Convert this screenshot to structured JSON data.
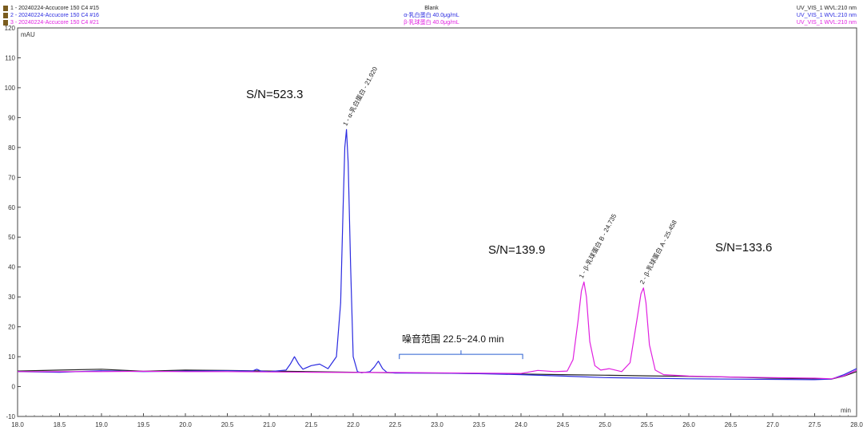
{
  "legend": [
    {
      "id": "1",
      "text": "1 - 20240224-Accucore 150 C4 #15",
      "center": "Blank",
      "right": "UV_VIS_1 WVL:210 nm",
      "color": "#222222"
    },
    {
      "id": "2",
      "text": "2 - 20240224-Accucore 150 C4 #16",
      "center": "α-乳白蛋白 40.0μg/mL",
      "right": "UV_VIS_1 WVL:210 nm",
      "color": "#2b2be0"
    },
    {
      "id": "3",
      "text": "3 - 20240224-Accucore 150 C4 #21",
      "center": "β-乳球蛋白 40.0μg/mL",
      "right": "UV_VIS_1 WVL:210 nm",
      "color": "#e020e0"
    }
  ],
  "chart_data": {
    "type": "line",
    "ylabel": "mAU",
    "xlabel": "min",
    "xlim": [
      18.0,
      28.0
    ],
    "ylim": [
      -10,
      120
    ],
    "xticks": [
      "18.0",
      "18.5",
      "19.0",
      "19.5",
      "20.0",
      "20.5",
      "21.0",
      "21.5",
      "22.0",
      "22.5",
      "23.0",
      "23.5",
      "24.0",
      "24.5",
      "25.0",
      "25.5",
      "26.0",
      "26.5",
      "27.0",
      "27.5",
      "28.0"
    ],
    "yticks": [
      "-10",
      "0",
      "10",
      "20",
      "30",
      "40",
      "50",
      "60",
      "70",
      "80",
      "90",
      "100",
      "110",
      "120"
    ],
    "series": [
      {
        "name": "1 - 20240224-Accucore 150 C4 #15",
        "color": "#222222",
        "x": [
          18.0,
          18.5,
          19.0,
          19.5,
          20.0,
          20.5,
          21.0,
          21.5,
          22.0,
          22.5,
          23.0,
          23.5,
          24.0,
          24.5,
          25.0,
          25.5,
          26.0,
          26.5,
          27.0,
          27.5,
          27.7,
          27.85,
          28.0
        ],
        "y": [
          5.2,
          5.5,
          5.8,
          5.1,
          5.5,
          5.4,
          5.2,
          5.0,
          4.8,
          4.6,
          4.5,
          4.4,
          4.2,
          4.0,
          3.8,
          3.6,
          3.4,
          3.2,
          2.8,
          2.6,
          2.5,
          3.5,
          5.0
        ]
      },
      {
        "name": "2 - 20240224-Accucore 150 C4 #16",
        "color": "#2b2be0",
        "x": [
          18.0,
          18.5,
          19.0,
          19.5,
          20.0,
          20.5,
          20.8,
          20.85,
          20.9,
          21.0,
          21.2,
          21.25,
          21.3,
          21.35,
          21.4,
          21.5,
          21.6,
          21.7,
          21.8,
          21.85,
          21.88,
          21.9,
          21.92,
          21.94,
          21.97,
          22.0,
          22.05,
          22.1,
          22.2,
          22.25,
          22.3,
          22.35,
          22.4,
          22.5,
          23.0,
          23.5,
          24.0,
          24.5,
          25.0,
          25.5,
          26.0,
          26.5,
          27.0,
          27.5,
          27.7,
          27.85,
          28.0
        ],
        "y": [
          5.0,
          4.8,
          5.3,
          5.0,
          5.2,
          5.3,
          5.2,
          5.8,
          5.2,
          5.0,
          5.5,
          7.5,
          10.0,
          7.5,
          5.8,
          7.0,
          7.5,
          6.0,
          10.0,
          28.0,
          60.0,
          80.0,
          86.0,
          75.0,
          40.0,
          10.0,
          5.0,
          4.6,
          5.0,
          6.5,
          8.5,
          6.0,
          4.8,
          4.5,
          4.5,
          4.3,
          4.0,
          3.5,
          3.0,
          2.8,
          2.6,
          2.5,
          2.4,
          2.3,
          2.5,
          4.0,
          6.0
        ]
      },
      {
        "name": "3 - 20240224-Accucore 150 C4 #21",
        "color": "#e020e0",
        "x": [
          18.0,
          18.5,
          19.0,
          19.5,
          20.0,
          20.5,
          21.0,
          21.5,
          22.0,
          22.5,
          23.0,
          23.5,
          24.0,
          24.2,
          24.4,
          24.55,
          24.62,
          24.68,
          24.72,
          24.75,
          24.78,
          24.82,
          24.88,
          24.95,
          25.05,
          25.2,
          25.3,
          25.38,
          25.43,
          25.46,
          25.49,
          25.53,
          25.6,
          25.7,
          26.0,
          26.5,
          27.0,
          27.5,
          27.7,
          27.85,
          28.0
        ],
        "y": [
          5.0,
          5.0,
          5.0,
          5.1,
          5.0,
          5.0,
          4.9,
          4.8,
          4.7,
          4.7,
          4.6,
          4.5,
          4.4,
          5.4,
          5.0,
          5.2,
          9.0,
          22.0,
          32.0,
          35.0,
          30.0,
          15.0,
          7.0,
          5.5,
          6.0,
          5.0,
          8.0,
          22.0,
          31.0,
          33.0,
          28.0,
          14.0,
          5.5,
          4.0,
          3.5,
          3.2,
          3.0,
          2.8,
          2.6,
          3.6,
          5.5
        ]
      }
    ],
    "annotations": [
      {
        "x": 21.92,
        "y": 86.0,
        "text": "1 - α-乳白蛋白 - 21.920",
        "color": "#2b2be0"
      },
      {
        "x": 24.735,
        "y": 35.0,
        "text": "1 - β-乳球蛋白 B - 24.735",
        "color": "#e020e0"
      },
      {
        "x": 25.458,
        "y": 33.0,
        "text": "2 - β-乳球蛋白 A - 25.458",
        "color": "#e020e0"
      }
    ]
  },
  "labels": {
    "sn1": "S/N=523.3",
    "sn2": "S/N=139.9",
    "sn3": "S/N=133.6",
    "noise": "噪音范围  22.5~24.0 min"
  },
  "noise_range": {
    "x_start": 22.55,
    "x_end": 24.02,
    "y": 10
  }
}
